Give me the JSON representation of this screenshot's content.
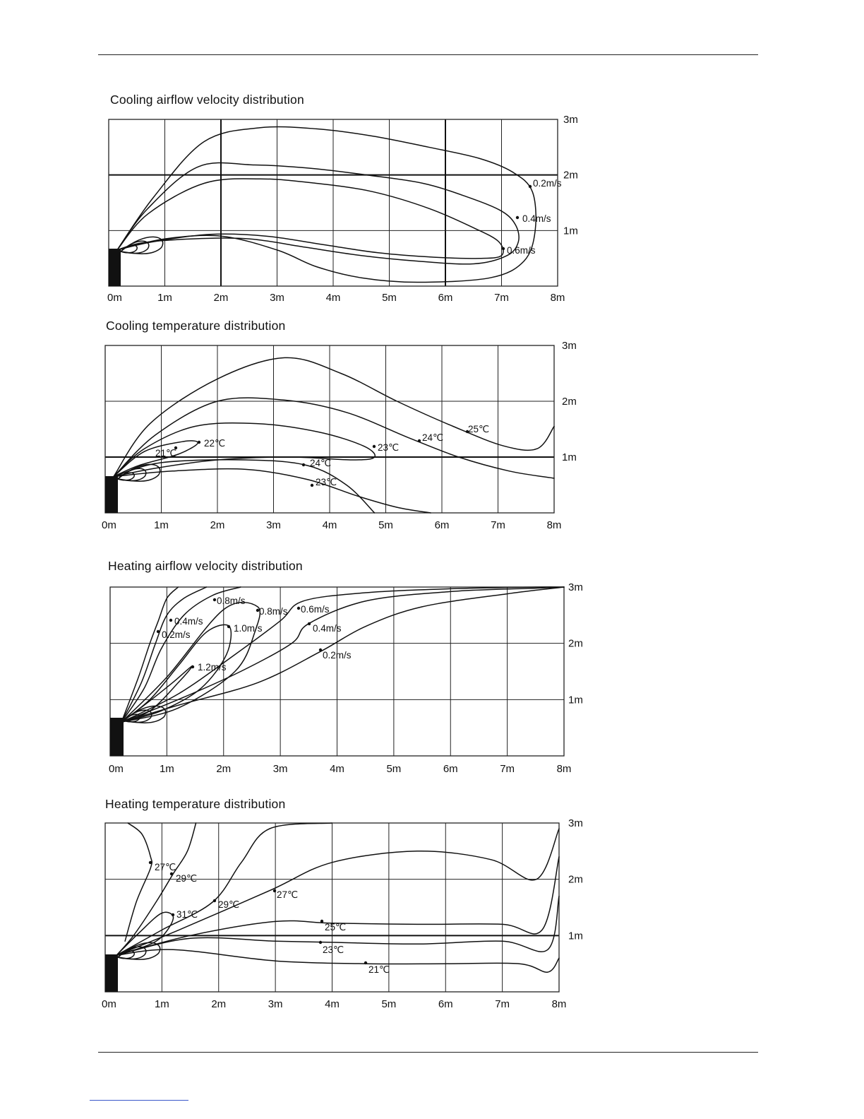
{
  "chart_data": [
    {
      "type": "line",
      "title": "Cooling airflow velocity distribution",
      "xlabel": "",
      "ylabel": "",
      "x_ticks": [
        "0m",
        "1m",
        "2m",
        "3m",
        "4m",
        "5m",
        "6m",
        "7m",
        "8m"
      ],
      "y_ticks": [
        "1m",
        "2m",
        "3m"
      ],
      "xlim": [
        0,
        8
      ],
      "ylim": [
        0,
        3
      ],
      "grid": true,
      "annotations": [
        "0.2m/s",
        "0.4m/s",
        "0.6m/s"
      ],
      "series": [
        {
          "label": "0.2m/s",
          "x": [
            0.15,
            0.8,
            1.7,
            2.7,
            3.7,
            4.7,
            5.7,
            6.6,
            7.2,
            7.55,
            7.6,
            7.4,
            6.8,
            5.5,
            4.5,
            3.7,
            3.0,
            2.0,
            1.0,
            0.15
          ],
          "y": [
            0.65,
            1.6,
            2.6,
            2.85,
            2.83,
            2.7,
            2.5,
            2.3,
            2.05,
            1.7,
            1.0,
            0.45,
            0.15,
            0.07,
            0.15,
            0.35,
            0.65,
            0.9,
            0.85,
            0.65
          ]
        },
        {
          "label": "0.4m/s",
          "x": [
            0.15,
            0.7,
            1.6,
            2.6,
            3.6,
            4.6,
            5.6,
            6.4,
            7.0,
            7.25,
            7.3,
            7.1,
            6.5,
            5.5,
            4.5,
            3.5,
            2.5,
            1.5,
            0.6,
            0.15
          ],
          "y": [
            0.65,
            1.4,
            2.15,
            2.18,
            2.12,
            2.0,
            1.85,
            1.6,
            1.35,
            1.1,
            0.8,
            0.55,
            0.4,
            0.45,
            0.55,
            0.7,
            0.85,
            0.85,
            0.78,
            0.65
          ]
        },
        {
          "label": "0.6m/s",
          "x": [
            0.15,
            0.7,
            1.7,
            2.7,
            3.7,
            4.7,
            5.7,
            6.5,
            6.95,
            7.0,
            6.6,
            5.8,
            4.8,
            3.8,
            2.8,
            1.8,
            0.8,
            0.15
          ],
          "y": [
            0.65,
            1.3,
            1.85,
            1.93,
            1.85,
            1.7,
            1.4,
            1.05,
            0.8,
            0.55,
            0.5,
            0.52,
            0.6,
            0.75,
            0.9,
            0.93,
            0.8,
            0.65
          ]
        }
      ]
    },
    {
      "type": "line",
      "title": "Cooling temperature distribution",
      "xlabel": "",
      "ylabel": "",
      "x_ticks": [
        "0m",
        "1m",
        "2m",
        "3m",
        "4m",
        "5m",
        "6m",
        "7m",
        "8m"
      ],
      "y_ticks": [
        "1m",
        "2m",
        "3m"
      ],
      "xlim": [
        0,
        8
      ],
      "ylim": [
        0,
        3
      ],
      "grid": true,
      "annotations": [
        "22℃",
        "21℃",
        "23℃",
        "24℃",
        "25℃",
        "24℃",
        "23℃"
      ],
      "series": [
        {
          "label": "25℃",
          "x": [
            0.15,
            0.8,
            2.0,
            3.2,
            4.2,
            5.2,
            6.2,
            7.1,
            7.7,
            8.0
          ],
          "y": [
            0.65,
            1.6,
            2.4,
            2.78,
            2.5,
            2.0,
            1.55,
            1.2,
            1.15,
            1.55
          ]
        },
        {
          "label": "24℃",
          "x": [
            0.15,
            0.9,
            2.0,
            3.2,
            4.3,
            5.4,
            6.3,
            7.2,
            8.0
          ],
          "y": [
            0.65,
            1.4,
            2.0,
            2.02,
            1.8,
            1.35,
            1.0,
            0.75,
            0.62
          ]
        },
        {
          "label": "23℃",
          "x": [
            0.15,
            0.7,
            1.6,
            2.7,
            3.8,
            4.6,
            4.8,
            4.4,
            3.3,
            2.0,
            0.9,
            0.15
          ],
          "y": [
            0.65,
            1.15,
            1.55,
            1.6,
            1.45,
            1.2,
            1.0,
            0.95,
            1.0,
            0.95,
            0.8,
            0.65
          ]
        },
        {
          "label": "22℃",
          "x": [
            0.15,
            0.7,
            1.4,
            1.65,
            1.3,
            0.6,
            0.15
          ],
          "y": [
            0.65,
            1.1,
            1.28,
            1.25,
            1.05,
            0.85,
            0.65
          ]
        },
        {
          "label": "24℃ lower",
          "x": [
            0.15,
            1.0,
            2.5,
            3.6,
            4.3,
            4.8
          ],
          "y": [
            0.65,
            0.9,
            0.95,
            0.85,
            0.5,
            0.0
          ]
        },
        {
          "label": "23℃ lower",
          "x": [
            0.15,
            1.2,
            2.5,
            3.6,
            4.5,
            5.2,
            5.8
          ],
          "y": [
            0.65,
            0.75,
            0.78,
            0.6,
            0.3,
            0.1,
            0.0
          ]
        }
      ]
    },
    {
      "type": "line",
      "title": "Heating airflow velocity distribution",
      "xlabel": "",
      "ylabel": "",
      "x_ticks": [
        "0m",
        "1m",
        "2m",
        "3m",
        "4m",
        "5m",
        "6m",
        "7m",
        "8m"
      ],
      "y_ticks": [
        "1m",
        "2m",
        "3m"
      ],
      "xlim": [
        0,
        8
      ],
      "ylim": [
        0,
        3
      ],
      "grid": true,
      "annotations": [
        "0.8m/s",
        "0.4m/s",
        "0.2m/s",
        "1.0m/s",
        "1.2m/s",
        "0.8m/s",
        "0.6m/s",
        "0.4m/s",
        "0.2m/s"
      ],
      "series": [
        {
          "label": "0.2m/s left",
          "x": [
            0.2,
            0.5,
            0.7,
            0.85,
            1.0,
            1.2
          ],
          "y": [
            0.6,
            1.4,
            2.0,
            2.4,
            2.8,
            3.0
          ]
        },
        {
          "label": "0.4m/s left",
          "x": [
            0.2,
            0.55,
            0.8,
            1.0,
            1.3,
            1.7
          ],
          "y": [
            0.6,
            1.3,
            2.0,
            2.5,
            2.8,
            3.0
          ]
        },
        {
          "label": "0.8m/s left",
          "x": [
            0.2,
            0.6,
            0.9,
            1.3,
            1.8,
            2.3
          ],
          "y": [
            0.6,
            1.2,
            1.9,
            2.5,
            2.85,
            3.0
          ]
        },
        {
          "label": "1.0m/s",
          "x": [
            0.2,
            0.7,
            1.2,
            1.7,
            2.1,
            2.05,
            1.6,
            0.9,
            0.2
          ],
          "y": [
            0.6,
            1.0,
            1.6,
            2.2,
            2.3,
            1.8,
            1.2,
            0.8,
            0.6
          ]
        },
        {
          "label": "1.2m/s",
          "x": [
            0.2,
            0.6,
            1.1,
            1.45,
            1.2,
            0.7,
            0.2
          ],
          "y": [
            0.6,
            0.9,
            1.3,
            1.6,
            1.3,
            0.8,
            0.6
          ]
        },
        {
          "label": "0.8m/s right",
          "x": [
            0.2,
            1.0,
            2.0,
            2.6,
            2.55,
            2.2,
            1.2,
            0.2
          ],
          "y": [
            0.6,
            1.4,
            2.6,
            2.65,
            2.2,
            1.5,
            0.85,
            0.6
          ]
        },
        {
          "label": "0.6m/s",
          "x": [
            0.2,
            1.2,
            2.2,
            3.0,
            3.4,
            4.5,
            6.0,
            7.5,
            8.0
          ],
          "y": [
            0.6,
            1.1,
            1.8,
            2.4,
            2.75,
            2.9,
            2.97,
            3.0,
            3.0
          ]
        },
        {
          "label": "0.4m/s right",
          "x": [
            0.2,
            1.2,
            2.3,
            3.2,
            3.5,
            4.5,
            6.0,
            7.5,
            8.0
          ],
          "y": [
            0.6,
            1.0,
            1.5,
            2.0,
            2.35,
            2.75,
            2.92,
            2.98,
            3.0
          ]
        },
        {
          "label": "0.2m/s right",
          "x": [
            0.2,
            1.2,
            2.6,
            3.7,
            4.5,
            5.5,
            7.0,
            8.0
          ],
          "y": [
            0.6,
            0.9,
            1.3,
            1.85,
            2.3,
            2.65,
            2.88,
            3.0
          ]
        }
      ]
    },
    {
      "type": "line",
      "title": "Heating temperature distribution",
      "xlabel": "",
      "ylabel": "",
      "x_ticks": [
        "0m",
        "1m",
        "2m",
        "3m",
        "4m",
        "5m",
        "6m",
        "7m",
        "8m"
      ],
      "y_ticks": [
        "1m",
        "2m",
        "3m"
      ],
      "xlim": [
        0,
        8
      ],
      "ylim": [
        0,
        3
      ],
      "grid": true,
      "annotations": [
        "27℃",
        "29℃",
        "29℃",
        "27℃",
        "31℃",
        "25℃",
        "23℃",
        "21℃"
      ],
      "series": [
        {
          "label": "27℃ left",
          "x": [
            0.4,
            0.65,
            0.8,
            0.8,
            0.55,
            0.35
          ],
          "y": [
            3.0,
            2.8,
            2.4,
            2.2,
            1.6,
            0.9
          ]
        },
        {
          "label": "29℃ left",
          "x": [
            1.6,
            1.45,
            1.2,
            0.9,
            0.5,
            0.2
          ],
          "y": [
            3.0,
            2.5,
            2.1,
            1.6,
            1.0,
            0.65
          ]
        },
        {
          "label": "31℃",
          "x": [
            0.2,
            0.6,
            1.0,
            1.2,
            0.9,
            0.2
          ],
          "y": [
            0.65,
            1.05,
            1.4,
            1.3,
            0.9,
            0.65
          ]
        },
        {
          "label": "29℃",
          "x": [
            0.2,
            1.0,
            1.9,
            2.4,
            2.9,
            4.0
          ],
          "y": [
            0.65,
            1.1,
            1.6,
            2.3,
            2.9,
            3.0
          ]
        },
        {
          "label": "27℃",
          "x": [
            0.2,
            1.3,
            2.9,
            4.0,
            5.5,
            6.8,
            7.6,
            8.0
          ],
          "y": [
            0.65,
            1.1,
            1.8,
            2.3,
            2.5,
            2.35,
            2.0,
            2.9
          ]
        },
        {
          "label": "25℃",
          "x": [
            0.2,
            1.5,
            3.0,
            4.0,
            5.5,
            7.0,
            7.7,
            8.0
          ],
          "y": [
            0.65,
            1.0,
            1.25,
            1.22,
            1.2,
            1.2,
            1.1,
            2.4
          ]
        },
        {
          "label": "23℃",
          "x": [
            0.2,
            1.5,
            3.0,
            4.0,
            5.5,
            7.0,
            7.8,
            8.0
          ],
          "y": [
            0.65,
            0.95,
            0.9,
            0.88,
            0.85,
            0.9,
            0.75,
            1.7
          ]
        },
        {
          "label": "21℃",
          "x": [
            0.2,
            1.2,
            3.0,
            4.6,
            6.0,
            7.3,
            7.8,
            8.0
          ],
          "y": [
            0.65,
            0.75,
            0.55,
            0.5,
            0.5,
            0.5,
            0.35,
            0.6
          ]
        }
      ]
    }
  ]
}
